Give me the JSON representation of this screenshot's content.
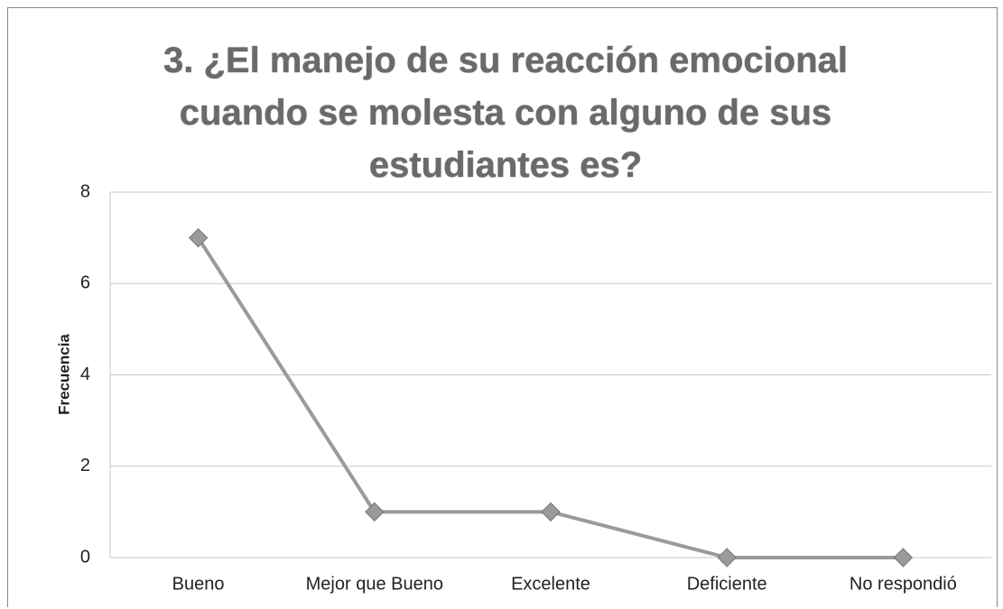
{
  "chart_data": {
    "type": "line",
    "title": "3. ¿El manejo de su reacción emocional cuando se molesta con alguno de sus estudiantes es?",
    "y_label": "Frecuencia",
    "categories": [
      "Bueno",
      "Mejor que Bueno",
      "Excelente",
      "Deficiente",
      "No respondió"
    ],
    "values": [
      7,
      1,
      1,
      0,
      0
    ],
    "color": "#9a9a9a",
    "ylim": [
      0,
      8
    ],
    "yticks": [
      0,
      2,
      4,
      6,
      8
    ],
    "grid": true
  }
}
